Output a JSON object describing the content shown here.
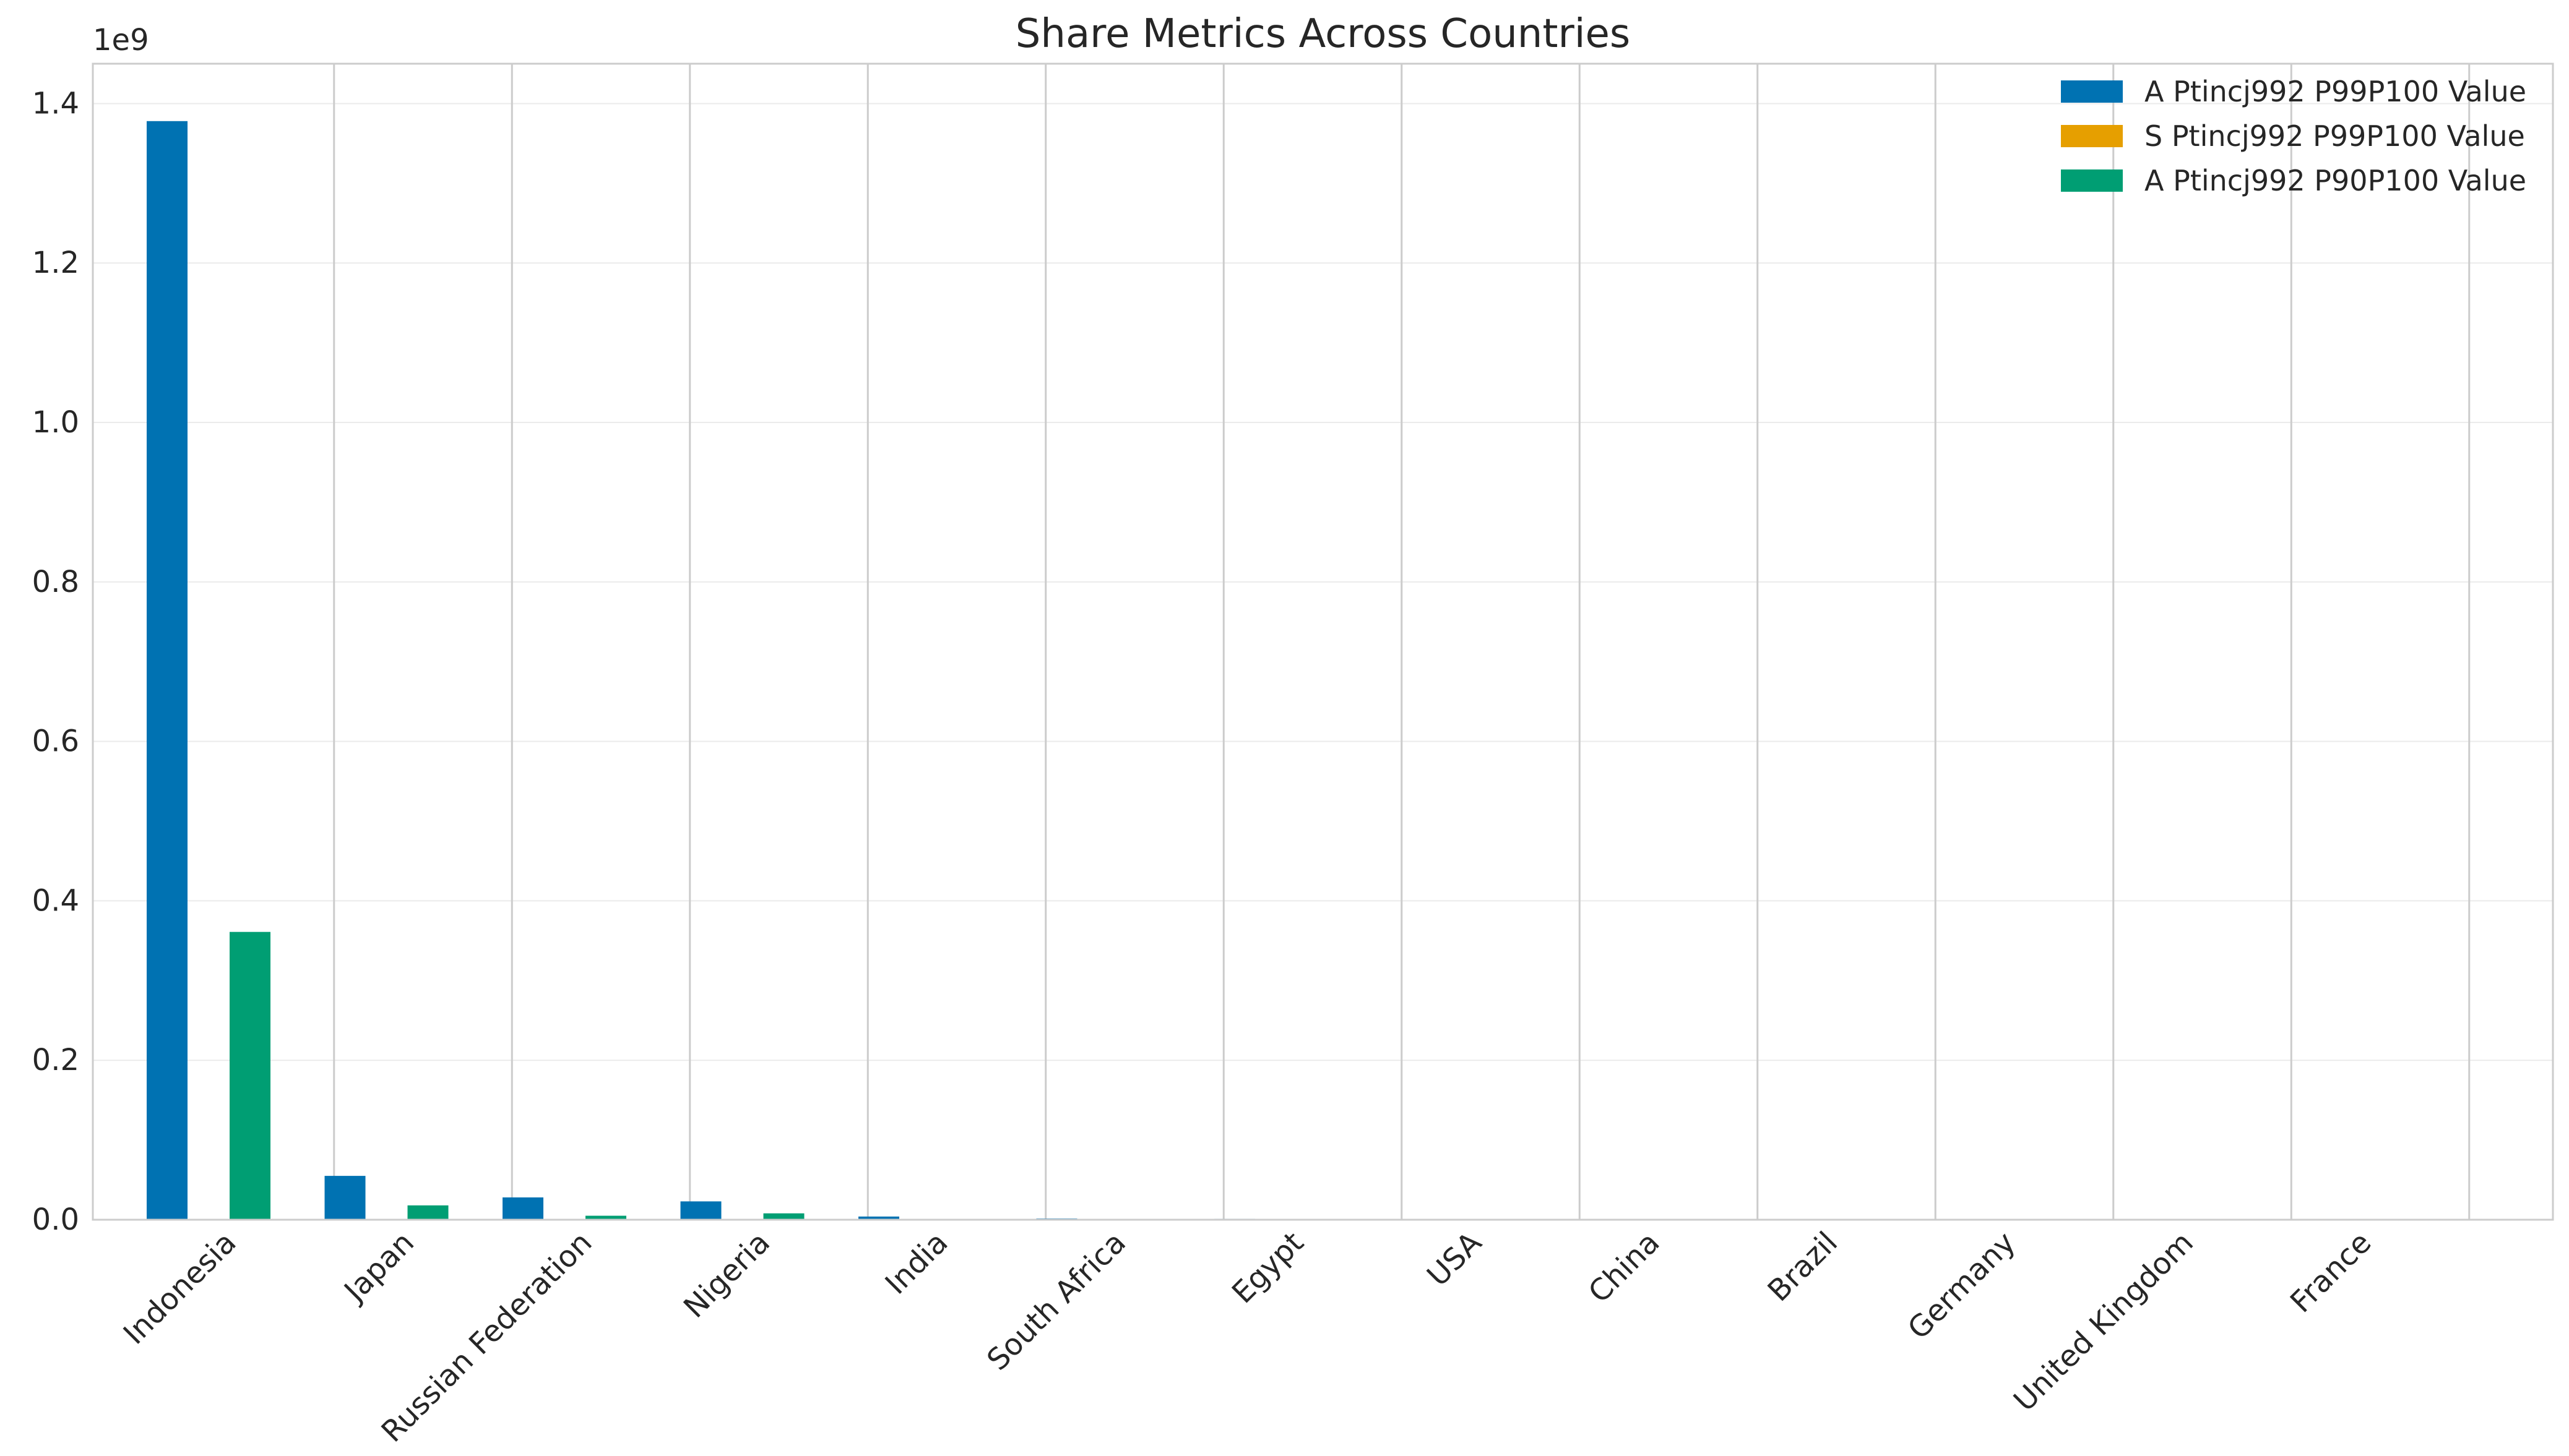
{
  "chart_data": {
    "type": "bar",
    "title": "Share Metrics Across Countries",
    "xlabel": "",
    "ylabel": "",
    "y_offset_label": "1e9",
    "y_scale": 1000000000,
    "ylim": [
      0,
      1.45
    ],
    "yticks": [
      0.0,
      0.2,
      0.4,
      0.6,
      0.8,
      1.0,
      1.2,
      1.4
    ],
    "ytick_labels": [
      "0.0",
      "0.2",
      "0.4",
      "0.6",
      "0.8",
      "1.0",
      "1.2",
      "1.4"
    ],
    "grid": true,
    "legend_position": "top-right",
    "categories": [
      "Indonesia",
      "Japan",
      "Russian Federation",
      "Nigeria",
      "India",
      "South Africa",
      "Egypt",
      "USA",
      "China",
      "Brazil",
      "Germany",
      "United Kingdom",
      "France"
    ],
    "series": [
      {
        "name": "A Ptincj992 P99P100 Value",
        "color": "#0072b2",
        "values": [
          1.378,
          0.055,
          0.028,
          0.023,
          0.004,
          0.0015,
          0.0012,
          0.0005,
          0.0004,
          0.0003,
          0.0002,
          0.0002,
          0.0001
        ]
      },
      {
        "name": "S Ptincj992 P99P100 Value",
        "color": "#e69f00",
        "values": [
          0,
          0,
          0,
          0,
          0,
          0,
          0,
          0,
          0,
          0,
          0,
          0,
          0
        ]
      },
      {
        "name": "A Ptincj992 P90P100 Value",
        "color": "#009e73",
        "values": [
          0.361,
          0.018,
          0.005,
          0.008,
          0.001,
          0.0004,
          0.0004,
          0.0002,
          0.0001,
          0.0001,
          0.0001,
          0.0001,
          0.0
        ]
      }
    ]
  }
}
